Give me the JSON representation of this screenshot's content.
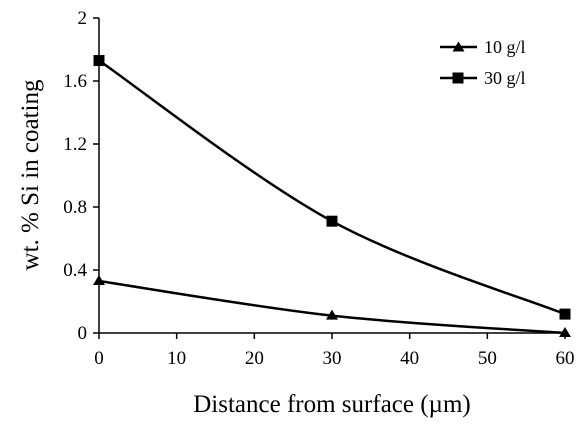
{
  "chart_data": {
    "type": "line",
    "xlabel": "Distance from surface (µm)",
    "ylabel": "wt. % Si in coating",
    "xlim": [
      0,
      60
    ],
    "ylim": [
      0,
      2
    ],
    "x_ticks": [
      "0",
      "10",
      "20",
      "30",
      "40",
      "50",
      "60"
    ],
    "y_ticks": [
      "0",
      "0.4",
      "0.8",
      "1.2",
      "1.6",
      "2"
    ],
    "grid": false,
    "legend_position": "top-right",
    "series": [
      {
        "name": "10 g/l",
        "marker": "triangle",
        "x": [
          0,
          30,
          60
        ],
        "y": [
          0.33,
          0.11,
          0.0
        ]
      },
      {
        "name": "30 g/l",
        "marker": "square",
        "x": [
          0,
          30,
          60
        ],
        "y": [
          1.73,
          0.71,
          0.12
        ]
      }
    ],
    "line_color": "#000000"
  }
}
